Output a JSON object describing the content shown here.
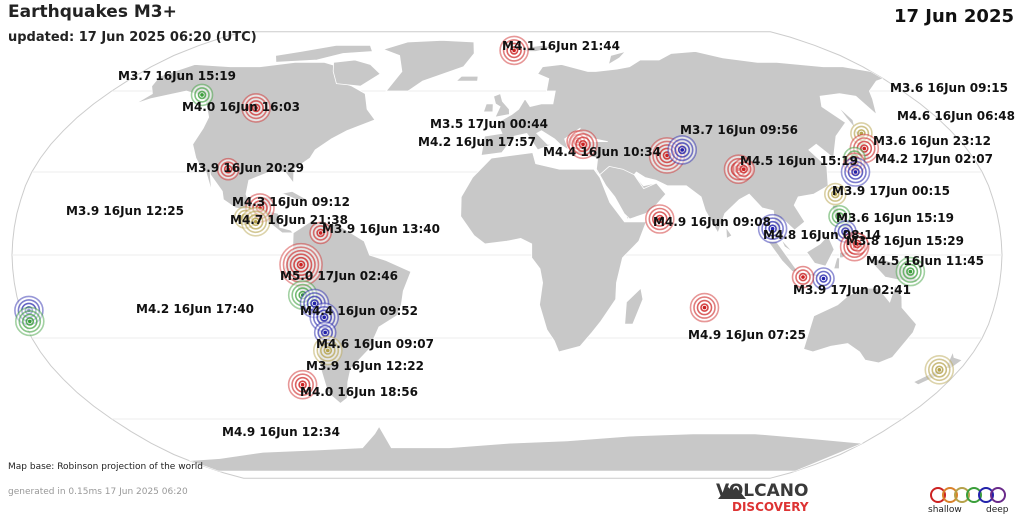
{
  "header": {
    "title": "Earthquakes M3+",
    "updated": "updated: 17 Jun 2025 06:20 (UTC)",
    "date": "17 Jun 2025"
  },
  "footer": {
    "map_base": "Map base: Robinson projection of the world",
    "generated": "generated in 0.15ms 17 Jun 2025 06:20",
    "logo_line1": "VOLCANO",
    "logo_line2": "DISCOVERY",
    "legend_shallow": "shallow",
    "legend_deep": "deep"
  },
  "colors": {
    "ocean": "#ffffff",
    "land": "#c8c8c8",
    "land_edge": "#ffffff",
    "shallow": "#cc2222",
    "intermediate": "#b5a24a",
    "green": "#3a9e3a",
    "deep": "#2222aa"
  },
  "quakes": [
    {
      "label": "M3.7 16Jun 15:19",
      "lon": -137.0,
      "lat": 58.5,
      "color": "green",
      "size": 1
    },
    {
      "label": "M4.0 16Jun 16:03",
      "lon": -108.0,
      "lat": 53.5,
      "color": "shallow",
      "size": 2
    },
    {
      "label": "M3.9 16Jun 20:29",
      "lon": -106.0,
      "lat": 31.0,
      "color": "shallow",
      "size": 1
    },
    {
      "label": "M4.3 16Jun 09:12",
      "lon": -91.0,
      "lat": 17.0,
      "color": "shallow",
      "size": 2
    },
    {
      "label": "M3.9 16Jun 12:25",
      "lon": -96.0,
      "lat": 13.5,
      "color": "intermediate",
      "size": 1
    },
    {
      "label": "M4.7 16Jun 21:38",
      "lon": -92.0,
      "lat": 12.0,
      "color": "intermediate",
      "size": 2
    },
    {
      "label": "M3.9 16Jun 13:40",
      "lon": -68.0,
      "lat": 8.0,
      "color": "shallow",
      "size": 1
    },
    {
      "label": "M5.0 17Jun 02:46",
      "lon": -75.0,
      "lat": -3.5,
      "color": "shallow",
      "size": 4
    },
    {
      "label": "M4.2 16Jun 17:40",
      "lon": -75.0,
      "lat": -14.5,
      "color": "green",
      "size": 2
    },
    {
      "label": "M4.4 16Jun 09:52",
      "lon": -71.0,
      "lat": -17.5,
      "color": "deep",
      "size": 2
    },
    {
      "label": "M4.6 16Jun 09:07",
      "lon": -68.0,
      "lat": -22.5,
      "color": "deep",
      "size": 2
    },
    {
      "label": "M3.9 16Jun 12:22",
      "lon": -68.5,
      "lat": -28.0,
      "color": "deep",
      "size": 1
    },
    {
      "label": "M4.0 16Jun 18:56",
      "lon": -69.0,
      "lat": -34.5,
      "color": "intermediate",
      "size": 2
    },
    {
      "label": "M4.9 16Jun 12:34",
      "lon": -84.0,
      "lat": -47.0,
      "color": "shallow",
      "size": 2
    },
    {
      "label": "M4.1 16Jun 21:44",
      "lon": 4.0,
      "lat": 77.5,
      "color": "shallow",
      "size": 2
    },
    {
      "label": "M3.5 17Jun 00:44",
      "lon": 28.0,
      "lat": 41.0,
      "color": "shallow",
      "size": 1
    },
    {
      "label": "M4.2 16Jun 17:57",
      "lon": 30.0,
      "lat": 40.0,
      "color": "shallow",
      "size": 2
    },
    {
      "label": "M4.4 16Jun 10:34",
      "lon": 62.0,
      "lat": 36.0,
      "color": "shallow",
      "size": 3
    },
    {
      "label": "",
      "lon": 68.5,
      "lat": 38.0,
      "color": "deep",
      "size": 2
    },
    {
      "label": "M3.7 16Jun 09:56",
      "lon": 88.0,
      "lat": 31.0,
      "color": "shallow",
      "size": 2
    },
    {
      "label": "M4.5 16Jun 15:19",
      "lon": 90.0,
      "lat": 31.0,
      "color": "shallow",
      "size": 1
    },
    {
      "label": "M4.9 16Jun 09:08",
      "lon": 56.0,
      "lat": 13.0,
      "color": "shallow",
      "size": 2
    },
    {
      "label": "M4.8 16Jun 08:14",
      "lon": 97.0,
      "lat": 9.5,
      "color": "deep",
      "size": 2
    },
    {
      "label": "M4.9 16Jun 07:25",
      "lon": 73.0,
      "lat": -19.0,
      "color": "shallow",
      "size": 2
    },
    {
      "label": "M3.6 16Jun 09:15",
      "lon": 143.0,
      "lat": 44.0,
      "color": "intermediate",
      "size": 1
    },
    {
      "label": "M4.6 16Jun 06:48",
      "lon": 140.0,
      "lat": 38.5,
      "color": "shallow",
      "size": 2
    },
    {
      "label": "",
      "lon": 134.0,
      "lat": 35.0,
      "color": "green",
      "size": 1
    },
    {
      "label": "M3.6 16Jun 23:12",
      "lon": 133.0,
      "lat": 33.0,
      "color": "shallow",
      "size": 1
    },
    {
      "label": "M4.2 17Jun 02:07",
      "lon": 132.0,
      "lat": 30.0,
      "color": "deep",
      "size": 2
    },
    {
      "label": "M3.9 17Jun 00:15",
      "lon": 122.0,
      "lat": 22.0,
      "color": "intermediate",
      "size": 1
    },
    {
      "label": "M3.6 16Jun 15:19",
      "lon": 122.0,
      "lat": 14.0,
      "color": "green",
      "size": 1
    },
    {
      "label": "M3.8 16Jun 15:29",
      "lon": 123.5,
      "lat": 8.5,
      "color": "deep",
      "size": 1
    },
    {
      "label": "M4.5 16Jun 11:45",
      "lon": 126.5,
      "lat": 3.0,
      "color": "shallow",
      "size": 2
    },
    {
      "label": "",
      "lon": 127.5,
      "lat": 4.0,
      "color": "shallow",
      "size": 1
    },
    {
      "label": "M3.9 17Jun 02:41",
      "lon": 115.5,
      "lat": -8.5,
      "color": "deep",
      "size": 1
    },
    {
      "label": "",
      "lon": 108.0,
      "lat": -8.0,
      "color": "shallow",
      "size": 1
    },
    {
      "label": "",
      "lon": 147.0,
      "lat": -6.0,
      "color": "green",
      "size": 2
    },
    {
      "label": "",
      "lon": -177.0,
      "lat": -20.0,
      "color": "deep",
      "size": 2
    },
    {
      "label": "",
      "lon": -178.0,
      "lat": -24.0,
      "color": "green",
      "size": 2
    },
    {
      "label": "",
      "lon": 172.0,
      "lat": -41.5,
      "color": "intermediate",
      "size": 2
    }
  ]
}
